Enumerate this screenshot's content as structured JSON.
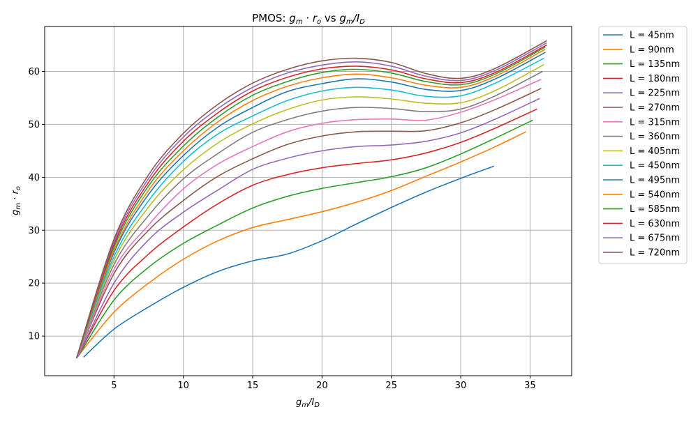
{
  "chart_data": {
    "type": "line",
    "title_prefix": "PMOS: ",
    "title_math": "g_m · r_o vs g_m/I_D",
    "xlabel": "g_m/I_D",
    "ylabel": "g_m · r_o",
    "xlim": [
      0,
      38
    ],
    "ylim": [
      2.5,
      68.5
    ],
    "xticks": [
      5,
      10,
      15,
      20,
      25,
      30,
      35
    ],
    "yticks": [
      10,
      20,
      30,
      40,
      50,
      60
    ],
    "grid": true,
    "legend_position": "outside-right",
    "series": [
      {
        "name": "L = 45nm",
        "color": "#1f77b4",
        "x": [
          2.8,
          5,
          7.5,
          10,
          12.5,
          15,
          17.5,
          20,
          22.5,
          25,
          27.5,
          30,
          32.4
        ],
        "y": [
          6,
          11.3,
          15.5,
          19.2,
          22.2,
          24.2,
          25.5,
          28,
          31.2,
          34.3,
          37.2,
          39.8,
          42.1
        ]
      },
      {
        "name": "L = 90nm",
        "color": "#ff7f0e",
        "x": [
          2.5,
          5,
          7.5,
          10,
          12.5,
          15,
          17.5,
          20,
          22.5,
          25,
          27.5,
          30,
          32.5,
          34.7
        ],
        "y": [
          6.5,
          14.5,
          20,
          24.5,
          28,
          30.5,
          32,
          33.5,
          35.3,
          37.5,
          40.2,
          42.9,
          45.8,
          48.6
        ]
      },
      {
        "name": "L = 135nm",
        "color": "#2ca02c",
        "x": [
          2.45,
          5,
          7.5,
          10,
          12.5,
          15,
          17.5,
          20,
          22.5,
          25,
          27.5,
          30,
          32.5,
          35.2
        ],
        "y": [
          6.3,
          16.8,
          23,
          27.5,
          31,
          34.2,
          36.4,
          37.9,
          39,
          40.1,
          41.8,
          44.4,
          47.4,
          50.8
        ]
      },
      {
        "name": "L = 180nm",
        "color": "#d62728",
        "x": [
          2.4,
          5,
          7.5,
          10,
          12.5,
          15,
          17.5,
          20,
          22.5,
          25,
          27.5,
          30,
          32.5,
          35.5
        ],
        "y": [
          6.2,
          18.6,
          25.5,
          30.6,
          35,
          38.5,
          40.5,
          41.8,
          42.6,
          43.3,
          44.6,
          46.6,
          49.3,
          52.9
        ]
      },
      {
        "name": "L = 225nm",
        "color": "#9467bd",
        "x": [
          2.4,
          5,
          7.5,
          10,
          12.5,
          15,
          17.5,
          20,
          22.5,
          25,
          27.5,
          30,
          32.5,
          35.7
        ],
        "y": [
          6.1,
          20,
          28.2,
          33.4,
          37.6,
          41.5,
          43.6,
          45,
          45.8,
          46.1,
          46.8,
          48.4,
          51,
          54.9
        ]
      },
      {
        "name": "L = 270nm",
        "color": "#8c564b",
        "x": [
          2.35,
          5,
          7.5,
          10,
          12.5,
          15,
          17.5,
          20,
          22.5,
          25,
          27.5,
          30,
          32.5,
          35.8
        ],
        "y": [
          6,
          21.8,
          30,
          35.6,
          40.2,
          43.5,
          46.2,
          47.8,
          48.6,
          48.7,
          48.8,
          50.3,
          52.8,
          56.8
        ]
      },
      {
        "name": "L = 315nm",
        "color": "#e377c2",
        "x": [
          2.35,
          5,
          7.5,
          10,
          12.5,
          15,
          17.5,
          20,
          22.5,
          25,
          27.5,
          30,
          32.5,
          35.8
        ],
        "y": [
          6,
          22.6,
          31,
          37.8,
          42.5,
          45.8,
          48.6,
          50.2,
          50.9,
          51,
          50.8,
          52.3,
          54.7,
          58.5
        ]
      },
      {
        "name": "L = 360nm",
        "color": "#7f7f7f",
        "x": [
          2.3,
          5,
          7.5,
          10,
          12.5,
          15,
          17.5,
          20,
          22.5,
          25,
          27.5,
          30,
          32.5,
          35.9
        ],
        "y": [
          5.95,
          23.5,
          32.8,
          39.7,
          44.5,
          48.5,
          50.9,
          52.5,
          53.2,
          53,
          52.4,
          52.9,
          55.4,
          60
        ]
      },
      {
        "name": "L = 405nm",
        "color": "#bcbd22",
        "x": [
          2.3,
          5,
          7.5,
          10,
          12.5,
          15,
          17.5,
          20,
          22.5,
          25,
          27.5,
          30,
          32.5,
          36
        ],
        "y": [
          5.9,
          24.3,
          34.4,
          41.4,
          46.5,
          50.1,
          52.8,
          54.6,
          55.2,
          54.8,
          54,
          54.1,
          56.4,
          61.3
        ]
      },
      {
        "name": "L = 450nm",
        "color": "#17becf",
        "x": [
          2.3,
          5,
          7.5,
          10,
          12.5,
          15,
          17.5,
          20,
          22.5,
          25,
          27.5,
          30,
          32.5,
          36
        ],
        "y": [
          5.9,
          25,
          35.6,
          43,
          48.2,
          51.6,
          54.5,
          56.3,
          57,
          56.5,
          55.3,
          55.4,
          57.8,
          62.5
        ]
      },
      {
        "name": "L = 495nm",
        "color": "#1f77b4",
        "x": [
          2.3,
          5,
          7.5,
          10,
          12.5,
          15,
          17.5,
          20,
          22.5,
          25,
          27.5,
          30,
          32.5,
          36.1
        ],
        "y": [
          5.85,
          25.8,
          36.8,
          44.1,
          49.5,
          53.2,
          56.2,
          57.7,
          58.6,
          58,
          56.6,
          56.4,
          58.6,
          63.6
        ]
      },
      {
        "name": "L = 540nm",
        "color": "#ff7f0e",
        "x": [
          2.3,
          5,
          7.5,
          10,
          12.5,
          15,
          17.5,
          20,
          22.5,
          25,
          27.5,
          30,
          32.5,
          36.1
        ],
        "y": [
          5.85,
          26.2,
          37.6,
          45,
          50.5,
          54.5,
          57.2,
          58.8,
          59.5,
          58.8,
          57.4,
          57,
          59.1,
          64.2
        ]
      },
      {
        "name": "L = 585nm",
        "color": "#2ca02c",
        "x": [
          2.3,
          5,
          7.5,
          10,
          12.5,
          15,
          17.5,
          20,
          22.5,
          25,
          27.5,
          30,
          32.5,
          36.1
        ],
        "y": [
          5.8,
          26.8,
          38.4,
          45.9,
          51.4,
          55.5,
          58.1,
          59.8,
          60.4,
          59.7,
          58.1,
          57.5,
          59.5,
          64.6
        ]
      },
      {
        "name": "L = 630nm",
        "color": "#d62728",
        "x": [
          2.3,
          5,
          7.5,
          10,
          12.5,
          15,
          17.5,
          20,
          22.5,
          25,
          27.5,
          30,
          32.5,
          36.2
        ],
        "y": [
          5.8,
          27.3,
          39.1,
          46.8,
          52.2,
          56.3,
          58.9,
          60.5,
          61,
          60.3,
          58.6,
          57.9,
          59.8,
          65
        ]
      },
      {
        "name": "L = 675nm",
        "color": "#9467bd",
        "x": [
          2.3,
          5,
          7.5,
          10,
          12.5,
          15,
          17.5,
          20,
          22.5,
          25,
          27.5,
          30,
          32.5,
          36.2
        ],
        "y": [
          5.8,
          27.8,
          39.8,
          47.6,
          53,
          57,
          59.7,
          61.2,
          61.8,
          61,
          59.1,
          58.3,
          60.2,
          65.4
        ]
      },
      {
        "name": "L = 720nm",
        "color": "#8c564b",
        "x": [
          2.3,
          5,
          7.5,
          10,
          12.5,
          15,
          17.5,
          20,
          22.5,
          25,
          27.5,
          30,
          32.5,
          36.2
        ],
        "y": [
          5.8,
          28.3,
          40.5,
          48.3,
          53.8,
          57.8,
          60.4,
          62,
          62.5,
          61.7,
          59.6,
          58.7,
          60.6,
          65.8
        ]
      }
    ]
  }
}
